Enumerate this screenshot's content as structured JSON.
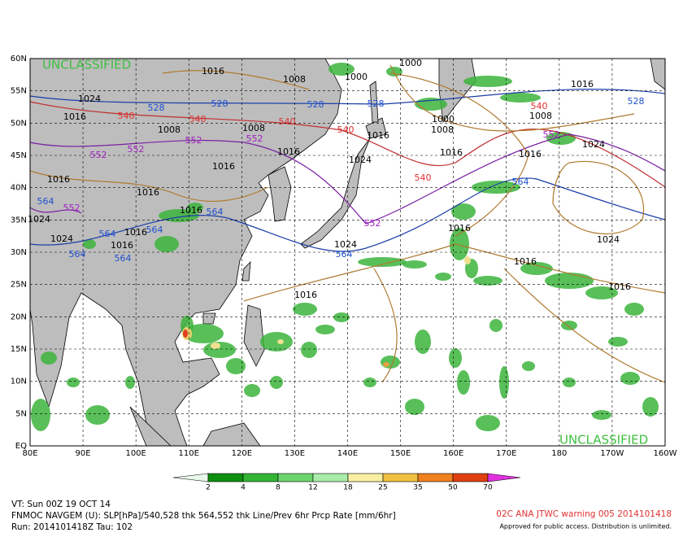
{
  "map": {
    "lat_labels": [
      "60N",
      "55N",
      "50N",
      "45N",
      "40N",
      "35N",
      "30N",
      "25N",
      "20N",
      "15N",
      "10N",
      "5N",
      "EQ"
    ],
    "lon_labels": [
      "80E",
      "90E",
      "100E",
      "110E",
      "120E",
      "130E",
      "140E",
      "150E",
      "160E",
      "170E",
      "180",
      "170W",
      "160W"
    ],
    "watermarks": [
      "UNCLASSIFIED",
      "UNCLASSIFIED"
    ],
    "contour_labels": [
      1016,
      1008,
      1000,
      1000,
      1016,
      528,
      1024,
      528,
      528,
      528,
      528,
      1016,
      540,
      540,
      540,
      540,
      1000,
      1008,
      1016,
      540,
      1008,
      552,
      1024,
      1016,
      1016,
      1008,
      1008,
      552,
      552,
      552,
      552,
      1016,
      1024,
      1016,
      540,
      1016,
      1016,
      564,
      564,
      552,
      1016,
      564,
      552,
      1024,
      1024,
      564,
      1016,
      564,
      1016,
      1016,
      1024,
      564,
      564,
      1024,
      564,
      1016,
      1016,
      1016
    ]
  },
  "colorbar": {
    "labels": [
      2,
      4,
      8,
      12,
      18,
      25,
      35,
      50,
      70
    ]
  },
  "footer": {
    "valid_time": "VT: Sun 00Z 19 OCT 14",
    "model": "FNMOC NAVGEM (U): SLP[hPa]/540,528 thk 564,552 thk Line/Prev 6hr Prcp Rate [mm/6hr]",
    "run": "Run: 2014101418Z Tau: 102",
    "warning": "02C ANA JTWC warning 005 2014101418",
    "approval": "Approved for public access. Distribution is unlimited."
  }
}
